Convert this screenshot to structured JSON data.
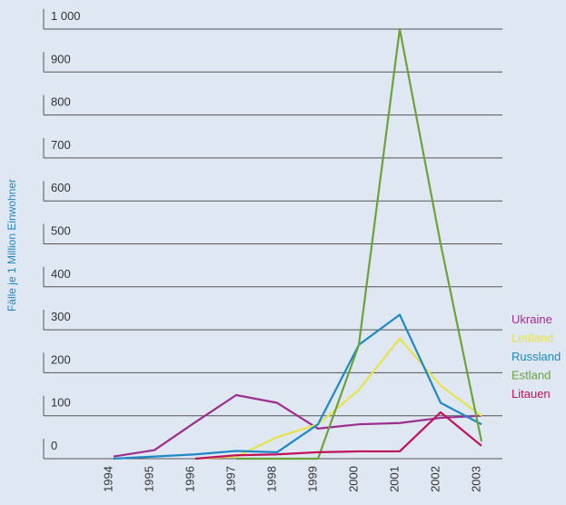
{
  "chart_data": {
    "type": "line",
    "y_label": "Fälle je 1 Million Einwohner",
    "categories": [
      "1994",
      "1995",
      "1996",
      "1997",
      "1998",
      "1999",
      "2000",
      "2001",
      "2002",
      "2003"
    ],
    "ylim": [
      0,
      1000
    ],
    "yticks": [
      0,
      100,
      200,
      300,
      400,
      500,
      600,
      700,
      800,
      900,
      {
        "value": 1000,
        "label": "1 000"
      }
    ],
    "grid": true,
    "series": [
      {
        "name": "Ukraine",
        "color": "#9b2f8f",
        "values": [
          5,
          20,
          85,
          148,
          130,
          70,
          80,
          83,
          95,
          100
        ]
      },
      {
        "name": "Lettland",
        "color": "#e6e44a",
        "values": [
          null,
          null,
          0,
          5,
          50,
          80,
          160,
          280,
          170,
          100
        ]
      },
      {
        "name": "Russland",
        "color": "#1f88c7",
        "values": [
          0,
          5,
          10,
          18,
          15,
          80,
          265,
          335,
          130,
          80
        ]
      },
      {
        "name": "Estland",
        "color": "#6aa33a",
        "values": [
          null,
          null,
          null,
          0,
          0,
          0,
          265,
          1000,
          500,
          40
        ]
      },
      {
        "name": "Litauen",
        "color": "#c0135a",
        "values": [
          null,
          null,
          0,
          8,
          10,
          15,
          17,
          17,
          108,
          30
        ]
      }
    ]
  }
}
